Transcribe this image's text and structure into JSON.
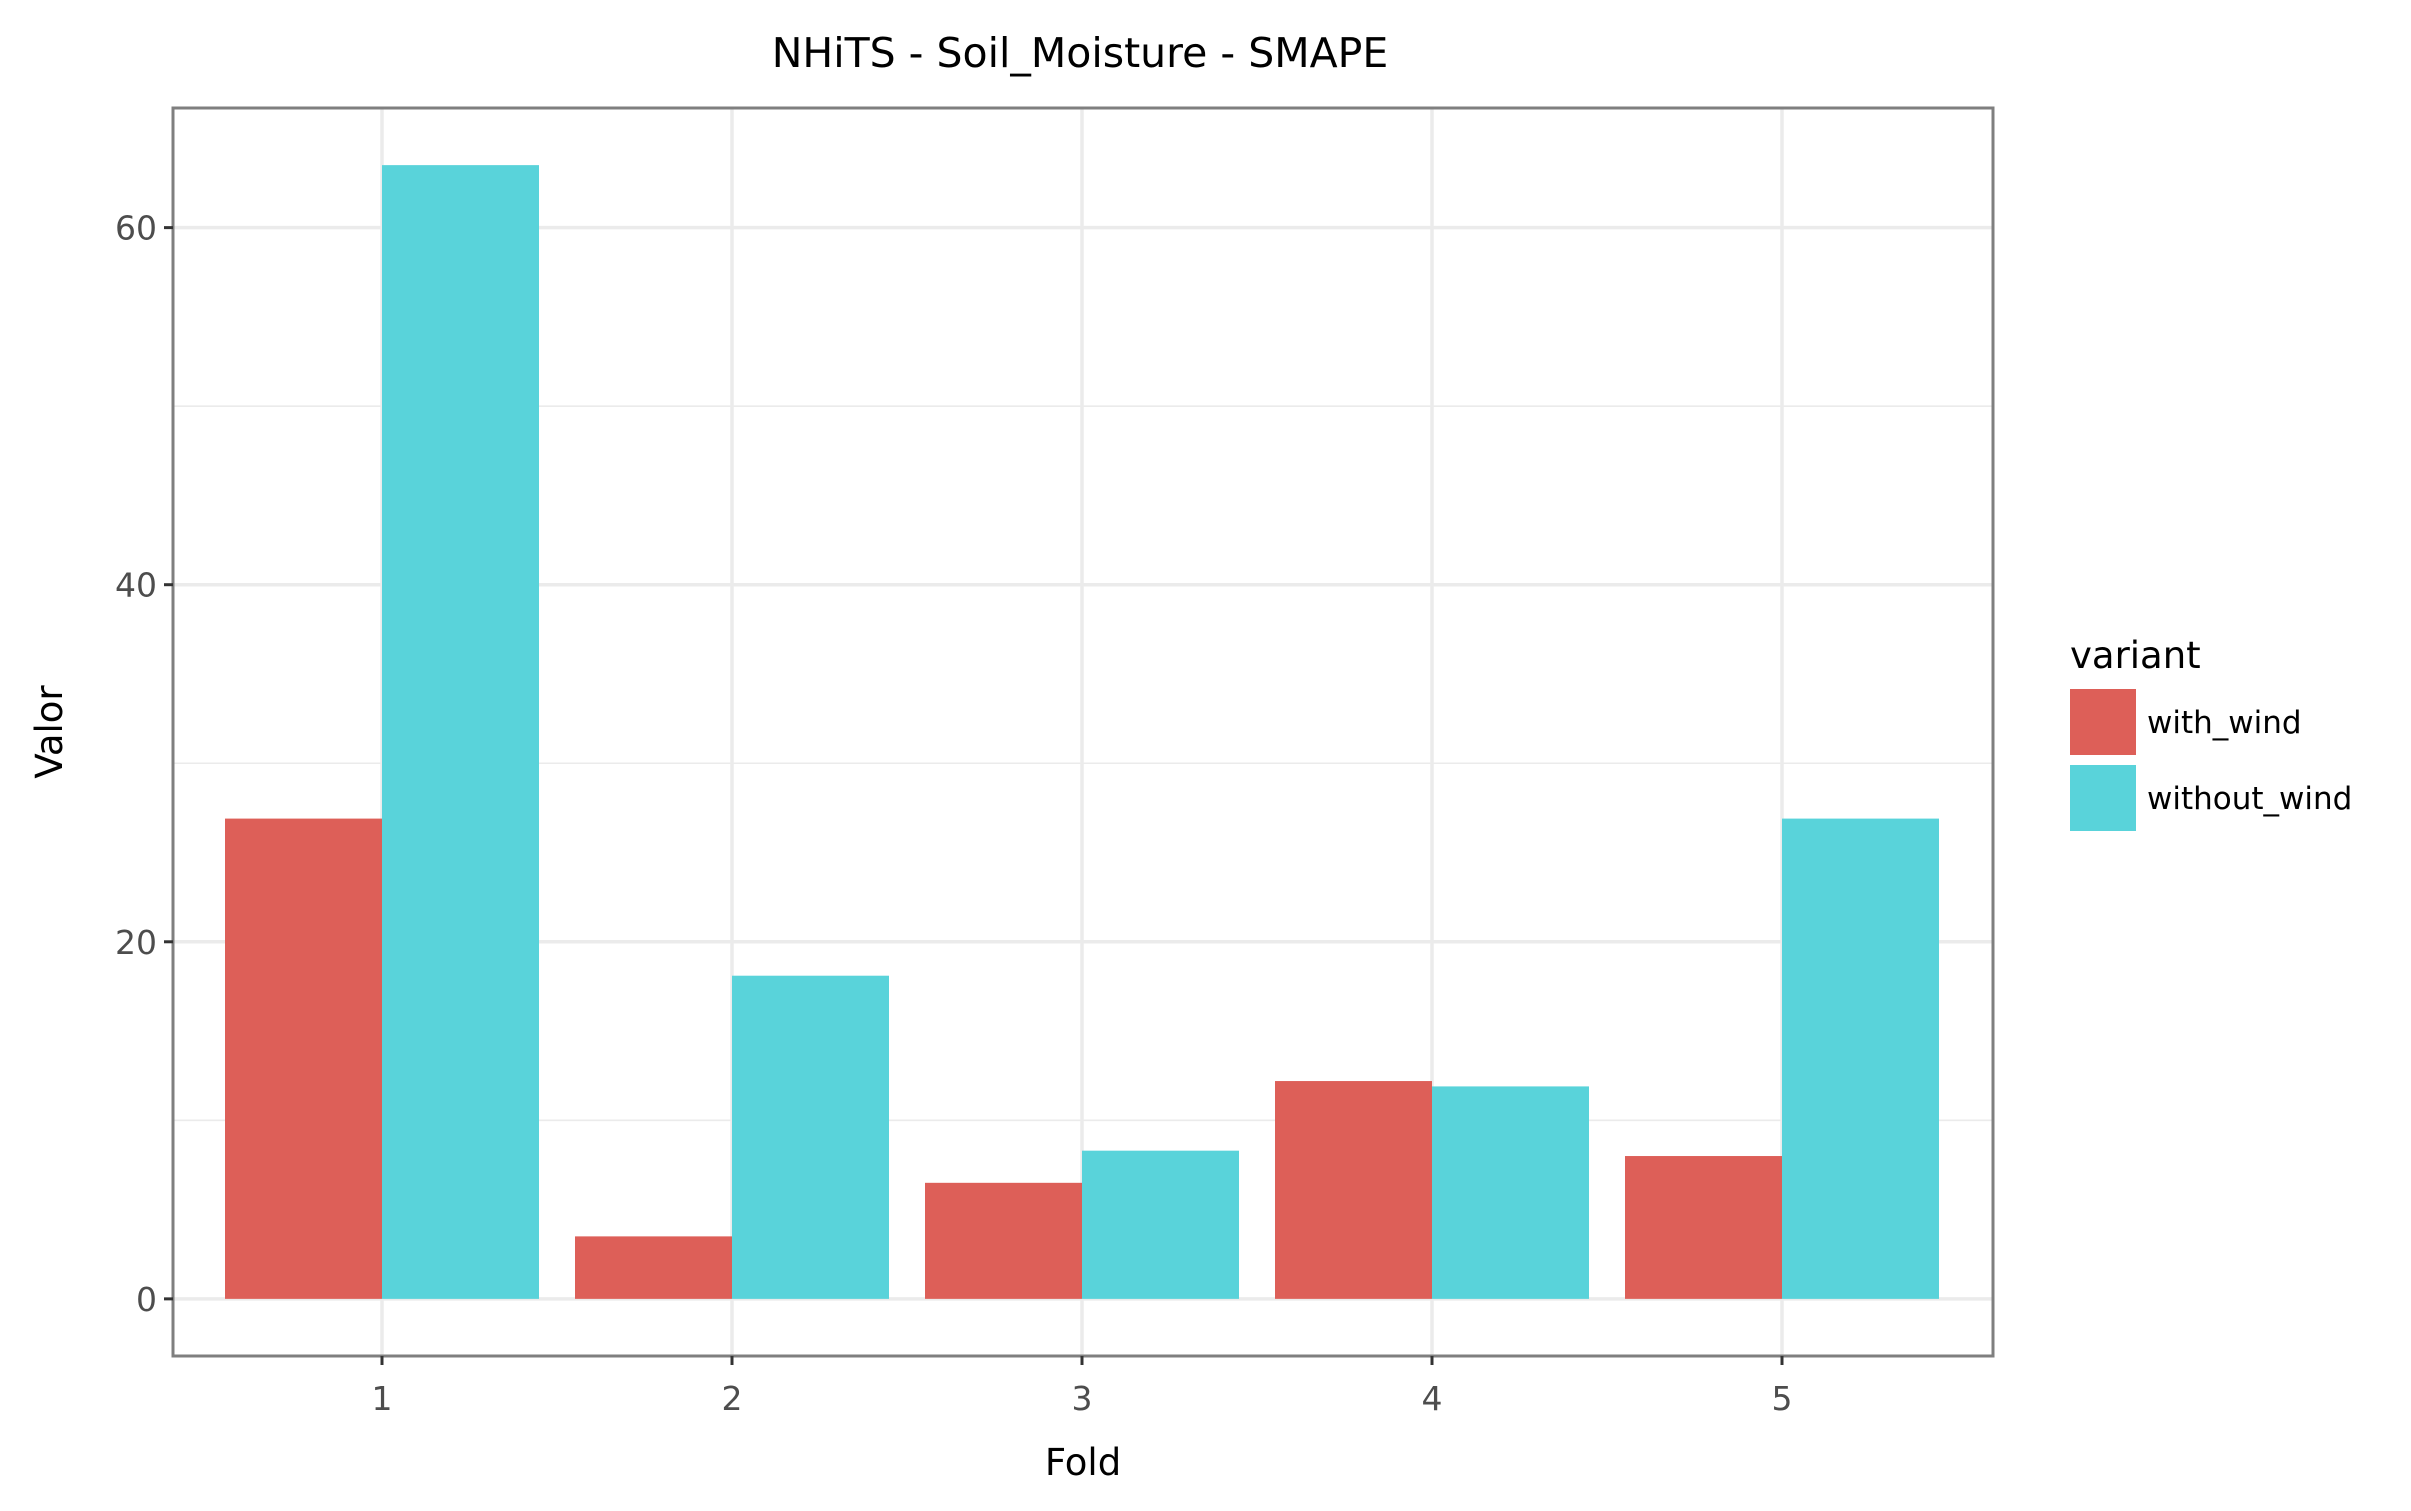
{
  "chart_data": {
    "type": "bar",
    "title": "NHiTS - Soil_Moisture - SMAPE",
    "xlabel": "Fold",
    "ylabel": "Valor",
    "categories": [
      "1",
      "2",
      "3",
      "4",
      "5"
    ],
    "series": [
      {
        "name": "with_wind",
        "color": "#DD5F58",
        "values": [
          26.9,
          3.5,
          6.5,
          12.2,
          8.0
        ]
      },
      {
        "name": "without_wind",
        "color": "#59D3DA",
        "values": [
          63.5,
          18.1,
          8.3,
          11.9,
          26.9
        ]
      }
    ],
    "ylim": [
      -3.2,
      66.7
    ],
    "yticks": [
      0,
      20,
      40,
      60
    ],
    "ytick_labels": [
      "0",
      "20",
      "40",
      "60"
    ],
    "grid": true,
    "legend": {
      "title": "variant",
      "placement": "right"
    }
  }
}
